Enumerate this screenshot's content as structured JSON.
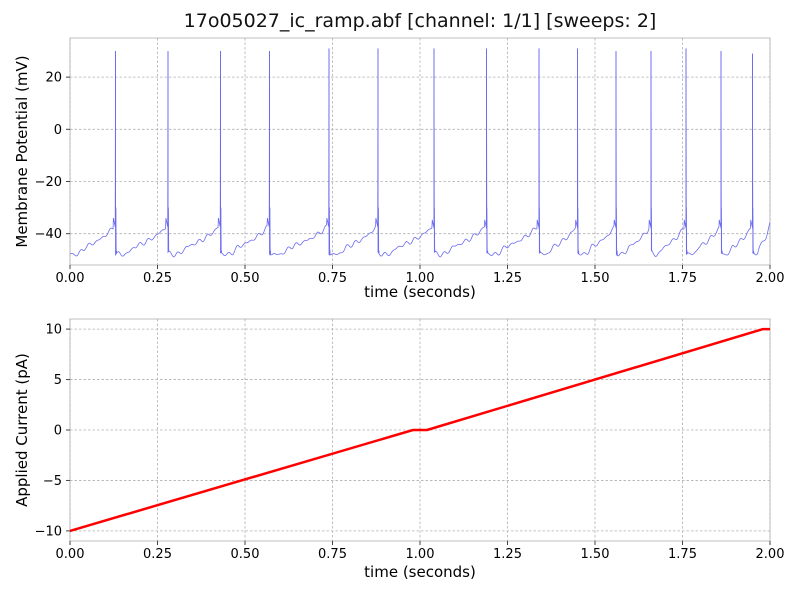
{
  "figure": {
    "title": "17o05027_ic_ramp.abf [channel: 1/1] [sweeps: 2]"
  },
  "chart_data": [
    {
      "type": "line",
      "title": "17o05027_ic_ramp.abf [channel: 1/1] [sweeps: 2]",
      "xlabel": "time (seconds)",
      "ylabel": "Membrane Potential (mV)",
      "xlim": [
        0,
        2
      ],
      "ylim": [
        -52,
        35
      ],
      "xticks": [
        "0.00",
        "0.25",
        "0.50",
        "0.75",
        "1.00",
        "1.25",
        "1.50",
        "1.75",
        "2.00"
      ],
      "yticks": [
        "20",
        "0",
        "−20",
        "−40"
      ],
      "grid": true,
      "color": "#6b6bf0",
      "series": [
        {
          "description": "action potential spike times (s) and peak amplitudes (mV)",
          "spike_times": [
            0.13,
            0.28,
            0.43,
            0.57,
            0.74,
            0.88,
            1.04,
            1.19,
            1.34,
            1.45,
            1.56,
            1.66,
            1.76,
            1.86,
            1.95
          ],
          "spike_peaks": [
            30,
            30,
            30,
            30,
            31,
            31,
            31,
            31,
            31,
            31,
            30,
            30,
            31,
            30,
            29
          ]
        }
      ]
    },
    {
      "type": "line",
      "xlabel": "time (seconds)",
      "ylabel": "Applied Current (pA)",
      "xlim": [
        0,
        2
      ],
      "ylim": [
        -11,
        11
      ],
      "xticks": [
        "0.00",
        "0.25",
        "0.50",
        "0.75",
        "1.00",
        "1.25",
        "1.50",
        "1.75",
        "2.00"
      ],
      "yticks": [
        "10",
        "5",
        "0",
        "−5",
        "−10"
      ],
      "grid": true,
      "color": "#ff0000",
      "series": [
        {
          "x": [
            0.0,
            0.98,
            1.02,
            1.98,
            2.0
          ],
          "y": [
            -10,
            0,
            0,
            10,
            10
          ]
        }
      ]
    }
  ]
}
